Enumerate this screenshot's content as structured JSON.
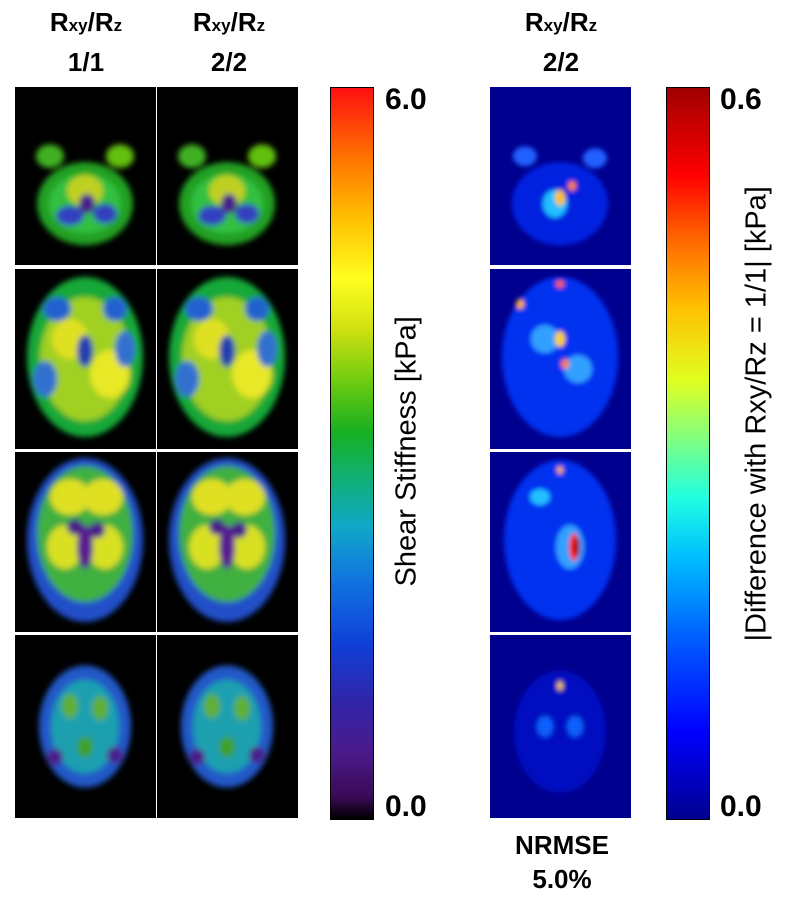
{
  "headers": {
    "col1": {
      "line1_main": "R",
      "line1_sub1": "xy",
      "slash": "/R",
      "line1_sub2": "z",
      "line2": "1/1"
    },
    "col2": {
      "line1_main": "R",
      "line1_sub1": "xy",
      "slash": "/R",
      "line1_sub2": "z",
      "line2": "2/2"
    },
    "col3": {
      "line1_main": "R",
      "line1_sub1": "xy",
      "slash": "/R",
      "line1_sub2": "z",
      "line2": "2/2"
    }
  },
  "colorbar_left": {
    "max_label": "6.0",
    "min_label": "0.0",
    "axis_label": "Shear Stiffness [kPa]",
    "colormap": "spectral (black-purple-blue-cyan-green-yellow-orange-red)"
  },
  "colorbar_right": {
    "max_label": "0.6",
    "min_label": "0.0",
    "axis_label": "|Difference with Rxy/Rz = 1/1| [kPa]",
    "colormap": "jet (dark blue-blue-cyan-yellow-orange-red-dark red)"
  },
  "footer": {
    "metric_label": "NRMSE",
    "metric_value": "5.0%"
  },
  "slices": [
    "slice-1",
    "slice-2",
    "slice-3",
    "slice-4"
  ]
}
